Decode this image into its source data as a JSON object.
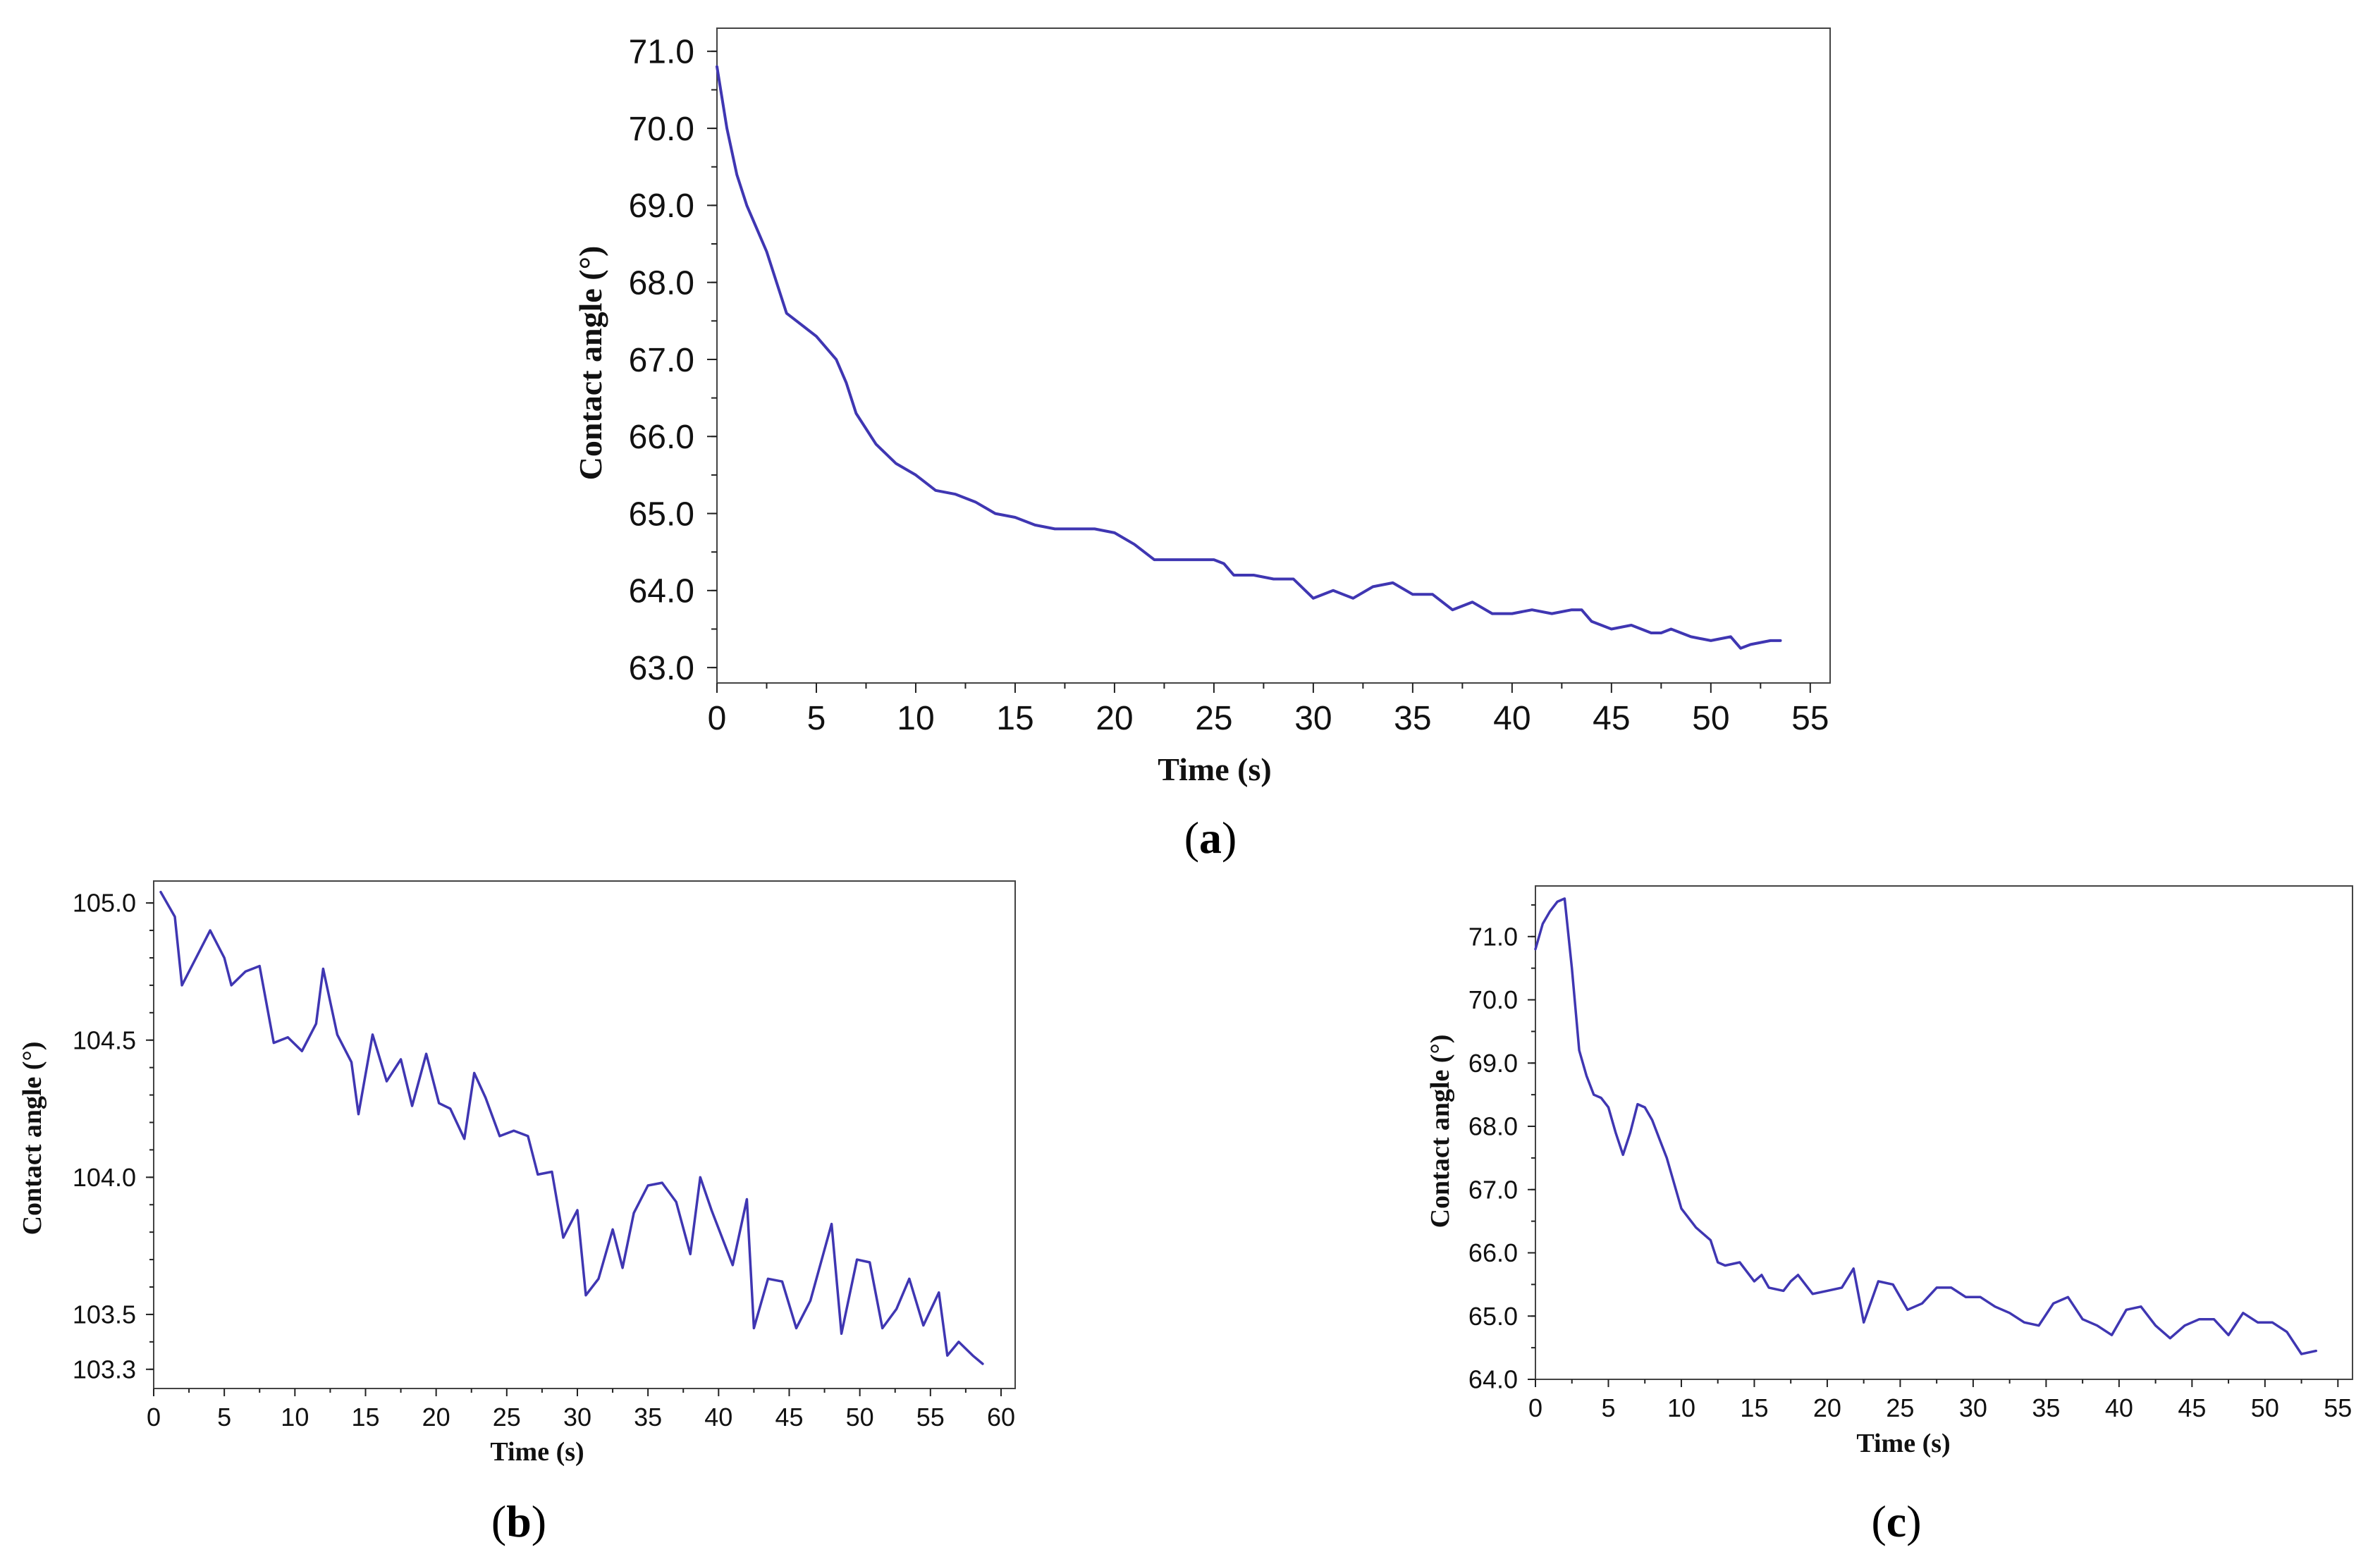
{
  "line_color": "#3f36b2",
  "chart_data": [
    {
      "panel": "(a)",
      "panel_letter": "a",
      "type": "line",
      "xlabel": "Time (s)",
      "ylabel": "Contact angle (°)",
      "xlim": [
        0,
        56
      ],
      "ylim": [
        62.8,
        71.3
      ],
      "xticks": [
        0,
        5,
        10,
        15,
        20,
        25,
        30,
        35,
        40,
        45,
        50,
        55
      ],
      "yticks": [
        63.0,
        64.0,
        65.0,
        66.0,
        67.0,
        68.0,
        69.0,
        70.0,
        71.0
      ],
      "ytick_labels": [
        "63.0",
        "64.0",
        "65.0",
        "66.0",
        "67.0",
        "68.0",
        "69.0",
        "70.0",
        "71.0"
      ],
      "series": [
        {
          "name": "Contact angle",
          "x": [
            0,
            0.5,
            1,
            1.5,
            2,
            2.5,
            3,
            3.5,
            4,
            5,
            6,
            6.5,
            7,
            8,
            9,
            10,
            11,
            12,
            13,
            14,
            15,
            16,
            17,
            18,
            19,
            20,
            21,
            22,
            23,
            24,
            25,
            25.5,
            26,
            27,
            28,
            29,
            30,
            31,
            32,
            33,
            34,
            35,
            36,
            37,
            37.5,
            38,
            39,
            40,
            41,
            42,
            43,
            43.5,
            44,
            45,
            46,
            46.5,
            47,
            47.5,
            48,
            49,
            50,
            51,
            51.5,
            52,
            53,
            53.5
          ],
          "y": [
            70.8,
            70.0,
            69.4,
            69.0,
            68.7,
            68.4,
            68.0,
            67.6,
            67.5,
            67.3,
            67.0,
            66.7,
            66.3,
            65.9,
            65.65,
            65.5,
            65.3,
            65.25,
            65.15,
            65.0,
            64.95,
            64.85,
            64.8,
            64.8,
            64.8,
            64.75,
            64.6,
            64.4,
            64.4,
            64.4,
            64.4,
            64.35,
            64.2,
            64.2,
            64.15,
            64.15,
            63.9,
            64.0,
            63.9,
            64.05,
            64.1,
            63.95,
            63.95,
            63.75,
            63.8,
            63.85,
            63.7,
            63.7,
            63.75,
            63.7,
            63.75,
            63.75,
            63.6,
            63.5,
            63.55,
            63.5,
            63.45,
            63.45,
            63.5,
            63.4,
            63.35,
            63.4,
            63.25,
            63.3,
            63.35,
            63.35
          ]
        }
      ]
    },
    {
      "panel": "(b)",
      "panel_letter": "b",
      "type": "line",
      "xlabel": "Time (s)",
      "ylabel": "Contact angle (°)",
      "xlim": [
        0,
        61
      ],
      "ylim": [
        103.23,
        105.08
      ],
      "xticks": [
        0,
        5,
        10,
        15,
        20,
        25,
        30,
        35,
        40,
        45,
        50,
        55,
        60
      ],
      "yticks": [
        103.3,
        103.5,
        104.0,
        104.5,
        105.0
      ],
      "ytick_labels": [
        "103.3",
        "103.5",
        "104.0",
        "104.5",
        "105.0"
      ],
      "series": [
        {
          "name": "Contact angle",
          "x": [
            0.5,
            1.5,
            2,
            3,
            4,
            5,
            5.5,
            6.5,
            7.5,
            8.5,
            9.5,
            10.5,
            11.5,
            12,
            13,
            14,
            14.5,
            15.5,
            16.5,
            17.5,
            18.3,
            19.3,
            20.2,
            21,
            22,
            22.7,
            23.5,
            24.5,
            25.5,
            26.5,
            27.2,
            28.2,
            29,
            30,
            30.6,
            31.5,
            32.5,
            33.2,
            34,
            35,
            36,
            37,
            38,
            38.7,
            39.5,
            41,
            42,
            42.5,
            43.5,
            44.5,
            45.5,
            46.5,
            48,
            48.7,
            49.8,
            50.7,
            51.6,
            52.6,
            53.5,
            54.5,
            55.6,
            56.2,
            57,
            58,
            58.7
          ],
          "y": [
            105.04,
            104.95,
            104.7,
            104.8,
            104.9,
            104.8,
            104.7,
            104.75,
            104.77,
            104.49,
            104.51,
            104.46,
            104.56,
            104.76,
            104.52,
            104.42,
            104.23,
            104.52,
            104.35,
            104.43,
            104.26,
            104.45,
            104.27,
            104.25,
            104.14,
            104.38,
            104.29,
            104.15,
            104.17,
            104.15,
            104.01,
            104.02,
            103.78,
            103.88,
            103.57,
            103.63,
            103.81,
            103.67,
            103.87,
            103.97,
            103.98,
            103.91,
            103.72,
            104.0,
            103.88,
            103.68,
            103.92,
            103.45,
            103.63,
            103.62,
            103.45,
            103.55,
            103.83,
            103.43,
            103.7,
            103.69,
            103.45,
            103.52,
            103.63,
            103.46,
            103.58,
            103.35,
            103.4,
            103.35,
            103.32
          ]
        }
      ]
    },
    {
      "panel": "(c)",
      "panel_letter": "c",
      "type": "line",
      "xlabel": "Time (s)",
      "ylabel": "Contact angle (°)",
      "xlim": [
        0,
        56
      ],
      "ylim": [
        64.0,
        71.8
      ],
      "xticks": [
        0,
        5,
        10,
        15,
        20,
        25,
        30,
        35,
        40,
        45,
        50,
        55
      ],
      "yticks": [
        64.0,
        65.0,
        66.0,
        67.0,
        68.0,
        69.0,
        70.0,
        71.0
      ],
      "ytick_labels": [
        "64.0",
        "65.0",
        "66.0",
        "67.0",
        "68.0",
        "69.0",
        "70.0",
        "71.0"
      ],
      "series": [
        {
          "name": "Contact angle",
          "x": [
            0,
            0.5,
            1,
            1.5,
            2,
            2.5,
            3,
            3.5,
            4,
            4.5,
            5,
            5.5,
            6,
            6.5,
            7,
            7.5,
            8,
            8.5,
            9,
            10,
            11,
            12,
            12.5,
            13,
            14,
            15,
            15.5,
            16,
            17,
            17.5,
            18,
            19,
            20,
            21,
            21.8,
            22.5,
            23.5,
            24.5,
            25.5,
            26.5,
            27.5,
            28.5,
            29.5,
            30.5,
            31.5,
            32.5,
            33.5,
            34.5,
            35.5,
            36.5,
            37.5,
            38.5,
            39.5,
            40.5,
            41.5,
            42.5,
            43.5,
            44.5,
            45.5,
            46.5,
            47.5,
            48.5,
            49.5,
            50.5,
            51.5,
            52.5,
            53.5
          ],
          "y": [
            70.8,
            71.2,
            71.4,
            71.55,
            71.6,
            70.5,
            69.2,
            68.8,
            68.5,
            68.45,
            68.3,
            67.9,
            67.55,
            67.9,
            68.35,
            68.3,
            68.1,
            67.8,
            67.5,
            66.7,
            66.4,
            66.2,
            65.85,
            65.8,
            65.85,
            65.55,
            65.65,
            65.45,
            65.4,
            65.55,
            65.65,
            65.35,
            65.4,
            65.45,
            65.75,
            64.9,
            65.55,
            65.5,
            65.1,
            65.2,
            65.45,
            65.45,
            65.3,
            65.3,
            65.15,
            65.05,
            64.9,
            64.85,
            65.2,
            65.3,
            64.95,
            64.85,
            64.7,
            65.1,
            65.15,
            64.85,
            64.65,
            64.85,
            64.95,
            64.95,
            64.7,
            65.05,
            64.9,
            64.9,
            64.75,
            64.4,
            64.45
          ]
        }
      ]
    }
  ]
}
